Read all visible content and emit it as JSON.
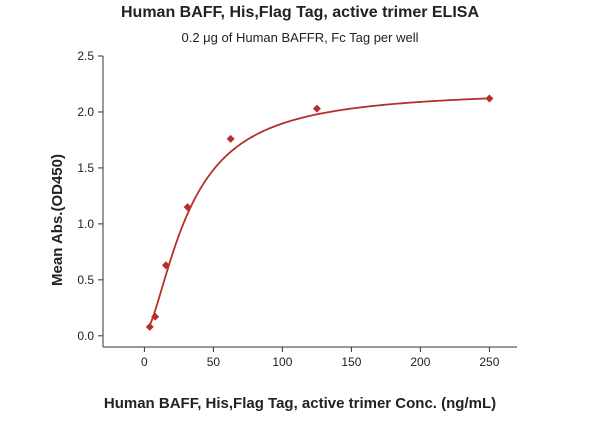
{
  "chart_data": {
    "type": "scatter",
    "title": "Human BAFF, His,Flag Tag, active trimer ELISA",
    "subtitle": "0.2 μg of Human BAFFR, Fc Tag per well",
    "xlabel": "Human BAFF, His,Flag Tag, active trimer Conc. (ng/mL)",
    "ylabel": "Mean Abs.(OD450)",
    "xlim": [
      -30,
      270
    ],
    "ylim": [
      -0.1,
      2.5
    ],
    "xticks": [
      0,
      50,
      100,
      150,
      200,
      250
    ],
    "yticks": [
      0.0,
      0.5,
      1.0,
      1.5,
      2.0,
      2.5
    ],
    "ytick_labels": [
      "0.0",
      "0.5",
      "1.0",
      "1.5",
      "2.0",
      "2.5"
    ],
    "grid": false,
    "series": [
      {
        "x": [
          3.9,
          7.8,
          15.6,
          31.3,
          62.5,
          125,
          250
        ],
        "y": [
          0.08,
          0.17,
          0.63,
          1.15,
          1.76,
          2.03,
          2.12
        ],
        "color": "#b5302a",
        "marker": "diamond",
        "fit": "four-parameter logistic"
      }
    ]
  }
}
